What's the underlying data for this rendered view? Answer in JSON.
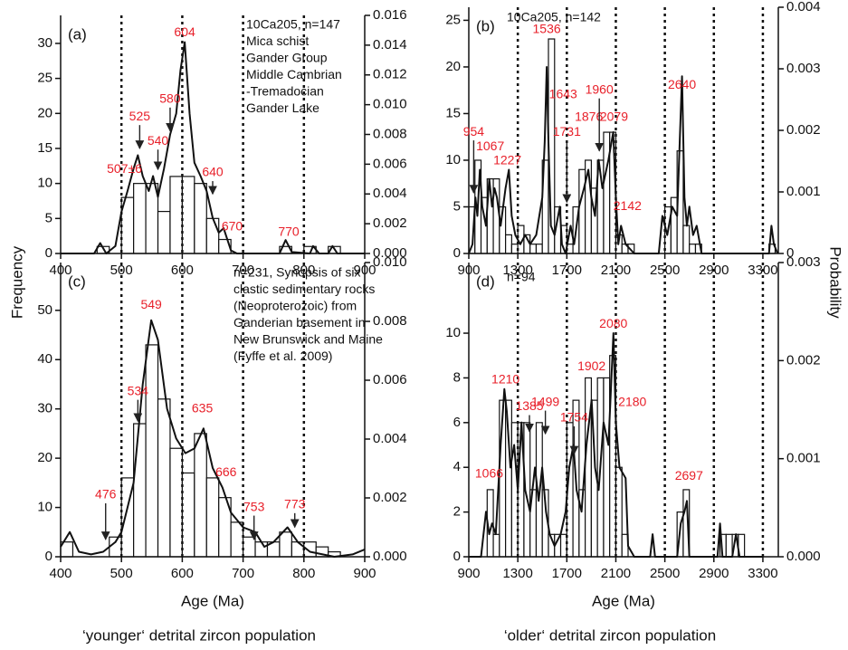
{
  "ylabel": "Frequency",
  "y2label": "Probability",
  "chart_data": [
    {
      "type": "histogram",
      "panel": "(a)",
      "text_box": [
        "10Ca205, n=147",
        "Mica schist",
        "Gander Group",
        "Middle Cambrian",
        "-Tremadocian",
        "Gander Lake"
      ],
      "xlim": [
        400,
        900
      ],
      "xticks": [
        400,
        500,
        600,
        700,
        800,
        900
      ],
      "ylim": [
        0,
        34
      ],
      "yticks": [
        0,
        5,
        10,
        15,
        20,
        25,
        30
      ],
      "y2lim": [
        0,
        0.016
      ],
      "y2ticks": [
        {
          "value": 0,
          "label": "0.000"
        },
        0.002,
        0.004,
        0.006,
        0.008,
        {
          "value": 0.01,
          "label": "0.010"
        },
        0.012,
        0.014,
        0.016
      ],
      "vlines": [
        500,
        600,
        700,
        800
      ],
      "bins": [
        460,
        480,
        500,
        520,
        540,
        560,
        580,
        600,
        620,
        640,
        660,
        680,
        700,
        720,
        740,
        760,
        780,
        800,
        820,
        840,
        860
      ],
      "values": [
        1,
        0,
        8,
        10,
        10,
        6,
        11,
        11,
        10,
        5,
        2,
        0,
        0,
        0,
        0,
        1,
        0,
        1,
        0,
        1
      ],
      "curve": {
        "axis": "y2",
        "x": [
          400,
          455,
          465,
          475,
          490,
          500,
          510,
          520,
          527,
          535,
          545,
          552,
          560,
          570,
          580,
          590,
          597,
          604,
          612,
          620,
          630,
          640,
          650,
          660,
          668,
          680,
          690,
          760,
          770,
          780,
          810,
          815,
          825,
          840,
          847,
          855,
          900
        ],
        "y": [
          0,
          0,
          0.0007,
          0,
          0.0005,
          0.0028,
          0.0042,
          0.0057,
          0.0066,
          0.0052,
          0.0042,
          0.0052,
          0.0038,
          0.0057,
          0.008,
          0.0094,
          0.0123,
          0.0142,
          0.0094,
          0.0061,
          0.0052,
          0.0042,
          0.0024,
          0.0014,
          0.0017,
          0.0002,
          0,
          0,
          0.0009,
          0.0001,
          0,
          0.0005,
          0,
          0,
          0.0005,
          0,
          0
        ]
      },
      "annotations": [
        {
          "label": "604",
          "x": 604,
          "y": 31.5
        },
        {
          "label": "525",
          "x": 530,
          "y": 19.5,
          "arrow_to": 15
        },
        {
          "label": "580",
          "x": 580,
          "y": 22,
          "arrow_to": 17.5
        },
        {
          "label": "540",
          "x": 560,
          "y": 16,
          "arrow_to": 12
        },
        {
          "label": "507±6",
          "x": 505,
          "y": 12
        },
        {
          "label": "640",
          "x": 650,
          "y": 11.5,
          "arrow_to": 8.5
        },
        {
          "label": "670",
          "x": 682,
          "y": 3.8
        },
        {
          "label": "770",
          "x": 775,
          "y": 3
        }
      ]
    },
    {
      "type": "histogram",
      "panel": "(b)",
      "text_box": [
        "10Ca205, n=142"
      ],
      "xlim": [
        900,
        3426
      ],
      "xticks": [
        900,
        1300,
        1700,
        2100,
        2500,
        2900,
        3300
      ],
      "ylim": [
        0,
        26.4
      ],
      "yticks": [
        0,
        5,
        10,
        15,
        20,
        25
      ],
      "y2lim": [
        0,
        0.004
      ],
      "y2ticks": [
        0,
        0.001,
        0.002,
        0.003,
        0.004
      ],
      "vlines": [
        1300,
        1700,
        2100,
        2500,
        2900,
        3300
      ],
      "bins": [
        900,
        950,
        1000,
        1050,
        1100,
        1150,
        1200,
        1250,
        1300,
        1350,
        1400,
        1450,
        1500,
        1550,
        1600,
        1650,
        1700,
        1750,
        1800,
        1850,
        1900,
        1950,
        2000,
        2050,
        2100,
        2150,
        2200,
        2250,
        2300,
        2350,
        2400,
        2450,
        2500,
        2550,
        2600,
        2650,
        2700,
        2750,
        2800,
        2850,
        2900,
        2950,
        3000,
        3050,
        3100,
        3150,
        3200,
        3250,
        3300,
        3350,
        3400
      ],
      "values": [
        5,
        10,
        6,
        8,
        8,
        5,
        2,
        1,
        3,
        2,
        1,
        1,
        10,
        23,
        5,
        3,
        1,
        5,
        9,
        10,
        7,
        10,
        13,
        13,
        2,
        1,
        1,
        0,
        0,
        0,
        0,
        0,
        5,
        6,
        11,
        3,
        1,
        1,
        0,
        0,
        0,
        0,
        0,
        0,
        0,
        0,
        0,
        0,
        0,
        1
      ],
      "curve": {
        "axis": "y2",
        "x": [
          900,
          930,
          954,
          970,
          990,
          1010,
          1040,
          1067,
          1090,
          1110,
          1130,
          1160,
          1200,
          1227,
          1250,
          1280,
          1320,
          1360,
          1400,
          1450,
          1500,
          1520,
          1536,
          1550,
          1570,
          1600,
          1643,
          1660,
          1690,
          1731,
          1760,
          1800,
          1840,
          1876,
          1900,
          1930,
          1960,
          1990,
          2040,
          2079,
          2100,
          2120,
          2142,
          2180,
          2250,
          2450,
          2480,
          2520,
          2560,
          2600,
          2640,
          2660,
          2680,
          2700,
          2730,
          2760,
          2800,
          3350,
          3370,
          3390,
          3420
        ],
        "y": [
          0,
          0.00015,
          0.00091,
          0.00061,
          0.00136,
          0.00076,
          0.00045,
          0.00121,
          0.00076,
          0.00106,
          0.00091,
          0.00045,
          0.00106,
          0.00136,
          0.00061,
          0.0003,
          0.00015,
          0.0003,
          0.00015,
          0.0003,
          0.00091,
          0.00182,
          0.00303,
          0.00182,
          0.00045,
          0.0003,
          0.00076,
          0.00015,
          0,
          0.00045,
          0.00015,
          0.00076,
          0.00106,
          0.00136,
          0.00091,
          0.00061,
          0.00152,
          0.00106,
          0.00152,
          0.00197,
          0.00091,
          0.00015,
          0.00045,
          0.00015,
          0,
          0,
          0.00061,
          0.0003,
          0.00076,
          0.00061,
          0.00288,
          0.00091,
          0.00045,
          0.00076,
          0.0003,
          0.00045,
          0,
          0,
          0.00045,
          0.00015,
          0
        ]
      },
      "annotations": [
        {
          "label": "954",
          "x": 940,
          "y": 13,
          "arrow_to": 6.5
        },
        {
          "label": "1067",
          "x": 1075,
          "y": 11.4
        },
        {
          "label": "1227",
          "x": 1215,
          "y": 9.9
        },
        {
          "label": "1536",
          "x": 1536,
          "y": 24
        },
        {
          "label": "1643",
          "x": 1670,
          "y": 17
        },
        {
          "label": "1731",
          "x": 1700,
          "y": 13,
          "arrow_to": 5.5
        },
        {
          "label": "1876",
          "x": 1880,
          "y": 14.6
        },
        {
          "label": "1960",
          "x": 1965,
          "y": 17.5,
          "arrow_to": 11
        },
        {
          "label": "2079",
          "x": 2085,
          "y": 14.6
        },
        {
          "label": "2142",
          "x": 2195,
          "y": 5
        },
        {
          "label": "2640",
          "x": 2640,
          "y": 18
        }
      ]
    },
    {
      "type": "histogram",
      "panel": "(c)",
      "text_box": [
        "n=231, Synopsis of six",
        "clastic sedimentary rocks",
        "(Neoproterozoic) from",
        "Ganderian basement in",
        "New Brunswick and Maine",
        "(Fyffe et al. 2009)"
      ],
      "xlim": [
        400,
        900
      ],
      "xticks": [
        400,
        500,
        600,
        700,
        800,
        900
      ],
      "ylim": [
        0,
        59.7
      ],
      "yticks": [
        0,
        10,
        20,
        30,
        40,
        50
      ],
      "y2lim": [
        0,
        0.01
      ],
      "y2ticks": [
        {
          "value": 0,
          "label": "0.000"
        },
        0.002,
        0.004,
        0.006,
        0.008,
        {
          "value": 0.01,
          "label": "0.010"
        }
      ],
      "vlines": [
        500,
        600,
        700,
        800
      ],
      "bins": [
        400,
        420,
        440,
        460,
        480,
        500,
        520,
        540,
        560,
        580,
        600,
        620,
        640,
        660,
        680,
        700,
        720,
        740,
        760,
        780,
        800,
        820,
        840,
        860,
        880,
        900
      ],
      "values": [
        3,
        0,
        0,
        0,
        4,
        16,
        27,
        43,
        32,
        22,
        17,
        25,
        16,
        12,
        7,
        4,
        3,
        3,
        5,
        3,
        3,
        2,
        1,
        0,
        0
      ],
      "curve": {
        "axis": "y2",
        "x": [
          400,
          415,
          430,
          450,
          470,
          490,
          500,
          520,
          535,
          549,
          560,
          575,
          590,
          605,
          620,
          635,
          650,
          666,
          680,
          700,
          720,
          735,
          750,
          773,
          790,
          810,
          850,
          880,
          900
        ],
        "y": [
          0.00034,
          0.00084,
          0.00017,
          8e-05,
          0.00017,
          0.0005,
          0.00084,
          0.00251,
          0.00586,
          0.00804,
          0.00737,
          0.00503,
          0.00402,
          0.00352,
          0.00368,
          0.00436,
          0.00302,
          0.00235,
          0.0015,
          0.001,
          0.00084,
          0.00034,
          0.0005,
          0.001,
          0.0005,
          0.00017,
          0,
          8e-05,
          0.00025
        ]
      },
      "annotations": [
        {
          "label": "549",
          "x": 549,
          "y": 51
        },
        {
          "label": "534",
          "x": 527,
          "y": 33.5,
          "arrow_to": 27.5
        },
        {
          "label": "476",
          "x": 474,
          "y": 12.5,
          "arrow_to": 3.5
        },
        {
          "label": "635",
          "x": 633,
          "y": 30
        },
        {
          "label": "666",
          "x": 672,
          "y": 17
        },
        {
          "label": "753",
          "x": 718,
          "y": 10,
          "arrow_to": 3.5
        },
        {
          "label": "773",
          "x": 785,
          "y": 10.5,
          "arrow_to": 6
        }
      ],
      "xlabel": "Age (Ma)",
      "caption": "‘younger‘ detrital zircon population"
    },
    {
      "type": "histogram",
      "panel": "(d)",
      "text_box": [
        "n=94"
      ],
      "xlim": [
        900,
        3426
      ],
      "xticks": [
        900,
        1300,
        1700,
        2100,
        2500,
        2900,
        3300
      ],
      "ylim": [
        0,
        13.16
      ],
      "yticks": [
        0,
        2,
        4,
        6,
        8,
        10
      ],
      "y2lim": [
        0,
        0.003
      ],
      "y2ticks": [
        {
          "value": 0,
          "label": "0.000"
        },
        0.001,
        0.002,
        0.003
      ],
      "vlines": [
        1300,
        1700,
        2100,
        2500,
        2900,
        3300
      ],
      "bins": [
        1000,
        1050,
        1100,
        1150,
        1200,
        1250,
        1300,
        1350,
        1400,
        1450,
        1500,
        1550,
        1600,
        1650,
        1700,
        1750,
        1800,
        1850,
        1900,
        1950,
        2000,
        2050,
        2100,
        2150,
        2200,
        2250,
        2300,
        2350,
        2400,
        2450,
        2500,
        2550,
        2600,
        2650,
        2700,
        2750,
        2800,
        2850,
        2900,
        2950,
        3000,
        3050,
        3100,
        3150,
        3200
      ],
      "values": [
        0,
        3,
        1,
        7,
        7,
        6,
        6,
        6,
        3,
        6,
        3,
        1,
        1,
        1,
        6,
        7,
        3,
        8,
        7,
        8,
        8,
        9,
        4,
        1,
        0,
        0,
        0,
        0,
        0,
        0,
        0,
        0,
        2,
        3,
        0,
        0,
        0,
        0,
        0,
        1,
        1,
        1,
        1,
        0
      ],
      "curve": {
        "axis": "y2",
        "x": [
          900,
          1000,
          1040,
          1066,
          1090,
          1120,
          1160,
          1190,
          1210,
          1240,
          1270,
          1300,
          1330,
          1360,
          1400,
          1440,
          1470,
          1499,
          1530,
          1560,
          1600,
          1650,
          1690,
          1720,
          1754,
          1780,
          1820,
          1860,
          1902,
          1930,
          1960,
          2000,
          2040,
          2080,
          2100,
          2130,
          2180,
          2200,
          2250,
          2380,
          2400,
          2420,
          2600,
          2630,
          2660,
          2680,
          2700,
          2930,
          2950,
          2970,
          3050,
          3080,
          3110,
          3300
        ],
        "y": [
          0,
          0,
          0.00046,
          0.00023,
          0.00034,
          0.00023,
          0.00114,
          0.00171,
          0.00148,
          0.00091,
          0.00114,
          0.00068,
          0.00137,
          0.00068,
          0.00046,
          0.00091,
          0.00057,
          0.00091,
          0.00046,
          0.00023,
          0.00011,
          0.00023,
          0.00046,
          0.00091,
          0.00114,
          0.00068,
          0.00046,
          0.00114,
          0.0016,
          0.00091,
          0.00068,
          0.00137,
          0.00114,
          0.00228,
          0.00137,
          0.00091,
          0.0008,
          0.00011,
          0,
          0,
          0.00023,
          0,
          0,
          0.00034,
          0.00046,
          0.00057,
          0,
          0,
          0.00034,
          0,
          0,
          0.00023,
          0,
          0
        ]
      },
      "annotations": [
        {
          "label": "1066",
          "x": 1066,
          "y": 3.7
        },
        {
          "label": "1210",
          "x": 1200,
          "y": 7.9
        },
        {
          "label": "1385",
          "x": 1395,
          "y": 6.7,
          "arrow_to": 5.6
        },
        {
          "label": "1499",
          "x": 1525,
          "y": 6.9,
          "arrow_to": 5.5
        },
        {
          "label": "1754",
          "x": 1760,
          "y": 6.2,
          "arrow_to": 4.6
        },
        {
          "label": "1902",
          "x": 1902,
          "y": 8.5
        },
        {
          "label": "2080",
          "x": 2080,
          "y": 10.4
        },
        {
          "label": "2180",
          "x": 2235,
          "y": 6.9
        },
        {
          "label": "2697",
          "x": 2697,
          "y": 3.6
        }
      ],
      "xlabel": "Age (Ma)",
      "caption": "‘older‘ detrital zircon population"
    }
  ]
}
